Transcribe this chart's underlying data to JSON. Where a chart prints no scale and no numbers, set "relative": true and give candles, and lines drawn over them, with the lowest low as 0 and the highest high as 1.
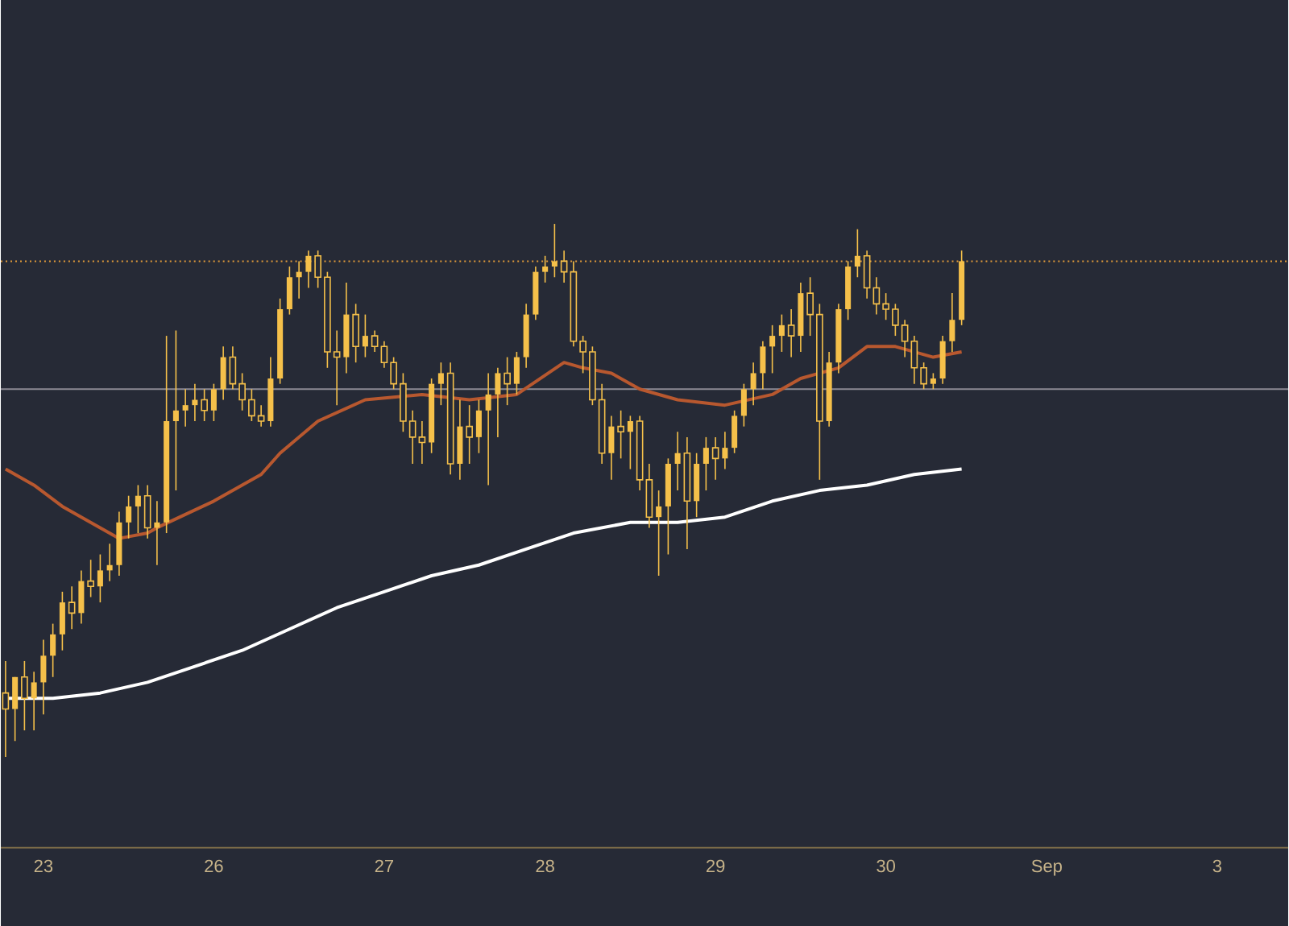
{
  "chart_data": {
    "type": "candlestick",
    "relative": true,
    "categories": [
      null,
      null,
      null,
      null,
      "23",
      null,
      null,
      null,
      null,
      null,
      null,
      null,
      null,
      null,
      null,
      null,
      null,
      null,
      null,
      null,
      null,
      null,
      "26",
      null,
      null,
      null,
      null,
      null,
      null,
      null,
      null,
      null,
      null,
      null,
      null,
      null,
      null,
      null,
      null,
      null,
      "27",
      null,
      null,
      null,
      null,
      null,
      null,
      null,
      null,
      null,
      null,
      null,
      null,
      null,
      null,
      null,
      null,
      "28",
      null,
      null,
      null,
      null,
      null,
      null,
      null,
      null,
      null,
      null,
      null,
      null,
      null,
      null,
      null,
      null,
      null,
      "29",
      null,
      null,
      null,
      null,
      null,
      null,
      null,
      null,
      null,
      null,
      null,
      null,
      null,
      null,
      null,
      null,
      null,
      "30",
      null,
      null,
      null,
      null,
      null,
      null,
      null,
      null,
      null,
      null,
      null,
      null,
      null,
      null,
      null,
      null,
      "Sep",
      null,
      null,
      null,
      null,
      null,
      null,
      null,
      null,
      null,
      null,
      null,
      null,
      null,
      null,
      null,
      null,
      null,
      "3",
      null,
      null,
      null,
      null,
      null,
      null,
      null
    ],
    "ref_lines": [
      {
        "axis": "y",
        "value": 0.69,
        "color": "#8c8a94",
        "line_style": "solid"
      },
      {
        "axis": "y",
        "value": 0.93,
        "color": "#e09a3a",
        "line_style": "dotted"
      }
    ],
    "series": [
      {
        "type": "line",
        "color": "#b8582f",
        "values": [
          0.54,
          null,
          null,
          0.51,
          null,
          null,
          0.47,
          null,
          null,
          null,
          0.43,
          null,
          0.41,
          null,
          null,
          0.42,
          0.43,
          null,
          null,
          null,
          null,
          null,
          0.48,
          null,
          null,
          null,
          null,
          0.53,
          null,
          0.57,
          null,
          null,
          null,
          0.63,
          null,
          null,
          null,
          null,
          0.67,
          null,
          null,
          null,
          null,
          null,
          0.68,
          null,
          null,
          null,
          null,
          0.67,
          null,
          null,
          null,
          null,
          0.68,
          null,
          null,
          null,
          null,
          0.74,
          null,
          0.73,
          null,
          null,
          0.72,
          null,
          null,
          0.69,
          null,
          null,
          null,
          0.67,
          null,
          null,
          null,
          null,
          0.66,
          null,
          null,
          null,
          null,
          0.68,
          null,
          null,
          0.71,
          null,
          null,
          null,
          0.73,
          null,
          null,
          0.77,
          null,
          null,
          0.77,
          null,
          null,
          null,
          0.75,
          null,
          null,
          0.76,
          null,
          null,
          null,
          null,
          null,
          null,
          null,
          null,
          null,
          null,
          null,
          null,
          null,
          null,
          null,
          null,
          null,
          null,
          null,
          null,
          null,
          null,
          null,
          null,
          null,
          null,
          null,
          null,
          null,
          null,
          null,
          null,
          null,
          null
        ]
      },
      {
        "type": "line",
        "color": "#ffffff",
        "values": [
          0.11,
          null,
          null,
          null,
          null,
          0.11,
          null,
          null,
          null,
          null,
          0.12,
          null,
          null,
          null,
          null,
          0.14,
          null,
          null,
          null,
          null,
          0.17,
          null,
          null,
          null,
          null,
          0.2,
          null,
          null,
          null,
          null,
          0.24,
          null,
          null,
          null,
          null,
          0.28,
          null,
          null,
          null,
          null,
          0.31,
          null,
          null,
          null,
          null,
          0.34,
          null,
          null,
          null,
          null,
          0.36,
          null,
          null,
          null,
          null,
          0.39,
          null,
          null,
          null,
          null,
          0.42,
          null,
          null,
          null,
          null,
          null,
          0.44,
          null,
          null,
          null,
          null,
          0.44,
          null,
          null,
          null,
          null,
          0.45,
          null,
          null,
          null,
          null,
          0.48,
          null,
          null,
          null,
          null,
          0.5,
          null,
          null,
          null,
          null,
          0.51,
          null,
          null,
          null,
          null,
          0.53,
          null,
          null,
          null,
          null,
          0.54,
          null,
          null,
          null,
          null,
          null,
          null,
          null,
          null,
          null,
          null,
          null,
          null,
          null,
          null,
          null,
          null,
          null,
          null,
          null,
          null,
          null,
          null,
          null,
          null,
          null,
          null,
          null,
          null,
          null,
          null,
          null,
          null,
          null,
          null
        ]
      },
      {
        "color": "#f5c04a",
        "ohlc": [
          [
            0.12,
            0.18,
            0,
            0.09
          ],
          [
            0.09,
            0.15,
            0.03,
            0.15
          ],
          [
            0.15,
            0.18,
            0.05,
            0.11
          ],
          [
            0.11,
            0.16,
            0.05,
            0.14
          ],
          [
            0.14,
            0.22,
            0.08,
            0.19
          ],
          [
            0.19,
            0.25,
            0.15,
            0.23
          ],
          [
            0.23,
            0.31,
            0.2,
            0.29
          ],
          [
            0.29,
            0.32,
            0.24,
            0.27
          ],
          [
            0.27,
            0.35,
            0.25,
            0.33
          ],
          [
            0.33,
            0.37,
            0.3,
            0.32
          ],
          [
            0.32,
            0.38,
            0.29,
            0.35
          ],
          [
            0.35,
            0.4,
            0.33,
            0.36
          ],
          [
            0.36,
            0.46,
            0.34,
            0.44
          ],
          [
            0.44,
            0.49,
            0.41,
            0.47
          ],
          [
            0.47,
            0.51,
            0.42,
            0.49
          ],
          [
            0.49,
            0.51,
            0.41,
            0.43
          ],
          [
            0.43,
            0.48,
            0.36,
            0.44
          ],
          [
            0.44,
            0.79,
            0.42,
            0.63
          ],
          [
            0.63,
            0.8,
            0.5,
            0.65
          ],
          [
            0.65,
            0.69,
            0.62,
            0.66
          ],
          [
            0.66,
            0.7,
            0.63,
            0.67
          ],
          [
            0.67,
            0.69,
            0.63,
            0.65
          ],
          [
            0.65,
            0.7,
            0.63,
            0.69
          ],
          [
            0.69,
            0.77,
            0.67,
            0.75
          ],
          [
            0.75,
            0.77,
            0.69,
            0.7
          ],
          [
            0.7,
            0.72,
            0.65,
            0.67
          ],
          [
            0.67,
            0.69,
            0.63,
            0.64
          ],
          [
            0.64,
            0.66,
            0.62,
            0.63
          ],
          [
            0.63,
            0.75,
            0.62,
            0.71
          ],
          [
            0.71,
            0.86,
            0.7,
            0.84
          ],
          [
            0.84,
            0.92,
            0.83,
            0.9
          ],
          [
            0.9,
            0.93,
            0.86,
            0.91
          ],
          [
            0.91,
            0.95,
            0.88,
            0.94
          ],
          [
            0.94,
            0.95,
            0.88,
            0.9
          ],
          [
            0.9,
            0.91,
            0.73,
            0.76
          ],
          [
            0.76,
            0.8,
            0.66,
            0.75
          ],
          [
            0.75,
            0.89,
            0.72,
            0.83
          ],
          [
            0.83,
            0.85,
            0.74,
            0.77
          ],
          [
            0.77,
            0.83,
            0.75,
            0.79
          ],
          [
            0.79,
            0.8,
            0.76,
            0.77
          ],
          [
            0.77,
            0.78,
            0.73,
            0.74
          ],
          [
            0.74,
            0.75,
            0.69,
            0.7
          ],
          [
            0.7,
            0.72,
            0.61,
            0.63
          ],
          [
            0.63,
            0.65,
            0.55,
            0.6
          ],
          [
            0.6,
            0.63,
            0.55,
            0.59
          ],
          [
            0.59,
            0.71,
            0.57,
            0.7
          ],
          [
            0.7,
            0.74,
            0.66,
            0.72
          ],
          [
            0.72,
            0.74,
            0.53,
            0.55
          ],
          [
            0.55,
            0.67,
            0.52,
            0.62
          ],
          [
            0.62,
            0.66,
            0.55,
            0.6
          ],
          [
            0.6,
            0.67,
            0.57,
            0.65
          ],
          [
            0.65,
            0.72,
            0.51,
            0.68
          ],
          [
            0.68,
            0.73,
            0.6,
            0.72
          ],
          [
            0.72,
            0.75,
            0.66,
            0.7
          ],
          [
            0.7,
            0.76,
            0.68,
            0.75
          ],
          [
            0.75,
            0.85,
            0.73,
            0.83
          ],
          [
            0.83,
            0.92,
            0.82,
            0.91
          ],
          [
            0.91,
            0.94,
            0.89,
            0.92
          ],
          [
            0.92,
            1,
            0.9,
            0.93
          ],
          [
            0.93,
            0.95,
            0.89,
            0.91
          ],
          [
            0.91,
            0.93,
            0.77,
            0.78
          ],
          [
            0.78,
            0.79,
            0.72,
            0.76
          ],
          [
            0.76,
            0.77,
            0.66,
            0.67
          ],
          [
            0.67,
            0.7,
            0.55,
            0.57
          ],
          [
            0.57,
            0.64,
            0.52,
            0.62
          ],
          [
            0.62,
            0.65,
            0.56,
            0.61
          ],
          [
            0.61,
            0.64,
            0.54,
            0.63
          ],
          [
            0.63,
            0.64,
            0.5,
            0.52
          ],
          [
            0.52,
            0.55,
            0.43,
            0.45
          ],
          [
            0.45,
            0.5,
            0.34,
            0.47
          ],
          [
            0.47,
            0.56,
            0.38,
            0.55
          ],
          [
            0.55,
            0.61,
            0.5,
            0.57
          ],
          [
            0.57,
            0.6,
            0.39,
            0.48
          ],
          [
            0.48,
            0.57,
            0.45,
            0.55
          ],
          [
            0.55,
            0.6,
            0.5,
            0.58
          ],
          [
            0.58,
            0.6,
            0.52,
            0.56
          ],
          [
            0.56,
            0.61,
            0.54,
            0.58
          ],
          [
            0.58,
            0.65,
            0.57,
            0.64
          ],
          [
            0.64,
            0.7,
            0.62,
            0.69
          ],
          [
            0.69,
            0.74,
            0.66,
            0.72
          ],
          [
            0.72,
            0.78,
            0.69,
            0.77
          ],
          [
            0.77,
            0.81,
            0.72,
            0.79
          ],
          [
            0.79,
            0.83,
            0.76,
            0.81
          ],
          [
            0.81,
            0.84,
            0.75,
            0.79
          ],
          [
            0.79,
            0.89,
            0.76,
            0.87
          ],
          [
            0.87,
            0.9,
            0.79,
            0.83
          ],
          [
            0.83,
            0.85,
            0.52,
            0.63
          ],
          [
            0.63,
            0.76,
            0.62,
            0.74
          ],
          [
            0.74,
            0.85,
            0.72,
            0.84
          ],
          [
            0.84,
            0.93,
            0.82,
            0.92
          ],
          [
            0.92,
            0.99,
            0.9,
            0.94
          ],
          [
            0.94,
            0.95,
            0.86,
            0.88
          ],
          [
            0.88,
            0.9,
            0.83,
            0.85
          ],
          [
            0.85,
            0.87,
            0.82,
            0.84
          ],
          [
            0.84,
            0.85,
            0.79,
            0.81
          ],
          [
            0.81,
            0.82,
            0.75,
            0.78
          ],
          [
            0.78,
            0.79,
            0.7,
            0.73
          ],
          [
            0.73,
            0.74,
            0.69,
            0.7
          ],
          [
            0.7,
            0.72,
            0.69,
            0.71
          ],
          [
            0.71,
            0.79,
            0.7,
            0.78
          ],
          [
            0.78,
            0.87,
            0.76,
            0.82
          ],
          [
            0.82,
            0.95,
            0.81,
            0.93
          ],
          null,
          null,
          null,
          null,
          null,
          null,
          null,
          null,
          null,
          null,
          null,
          null,
          null,
          null,
          null,
          null,
          null,
          null,
          null,
          null,
          null,
          null,
          null,
          null,
          null,
          null,
          null,
          null,
          null,
          null,
          null,
          null,
          null,
          null
        ]
      }
    ]
  }
}
